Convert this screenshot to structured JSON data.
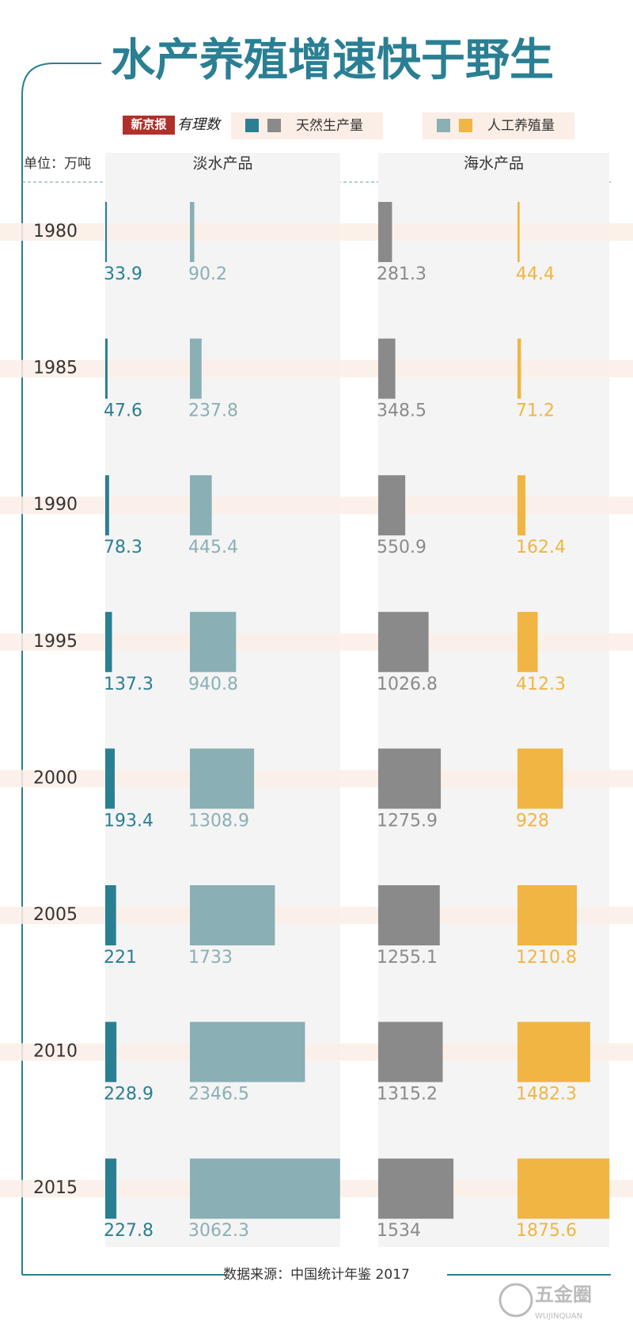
{
  "chart_data": {
    "type": "bar",
    "title": "水产养殖增速快于野生",
    "logo": "新京报",
    "logo_sub": "有理数",
    "unit": "单位：万吨",
    "source": "数据来源：中国统计年鉴 2017",
    "watermark": "五金圈",
    "watermark_sub": "WUJINQUAN",
    "categories": [
      "1980",
      "1985",
      "1990",
      "1995",
      "2000",
      "2005",
      "2010",
      "2015"
    ],
    "groups": [
      {
        "name": "淡水产品",
        "series": [
          {
            "name": "天然生产量",
            "color": "#2a7f93",
            "values": [
              33.9,
              47.6,
              78.3,
              137.3,
              193.4,
              221,
              228.9,
              227.8
            ]
          },
          {
            "name": "人工养殖量",
            "color": "#8aafb5",
            "values": [
              90.2,
              237.8,
              445.4,
              940.8,
              1308.9,
              1733,
              2346.5,
              3062.3
            ]
          }
        ]
      },
      {
        "name": "海水产品",
        "series": [
          {
            "name": "天然生产量",
            "color": "#8a8a8a",
            "values": [
              281.3,
              348.5,
              550.9,
              1026.8,
              1275.9,
              1255.1,
              1315.2,
              1534
            ]
          },
          {
            "name": "人工养殖量",
            "color": "#f0b542",
            "values": [
              44.4,
              71.2,
              162.4,
              412.3,
              928,
              1210.8,
              1482.3,
              1875.6
            ]
          }
        ]
      }
    ]
  }
}
